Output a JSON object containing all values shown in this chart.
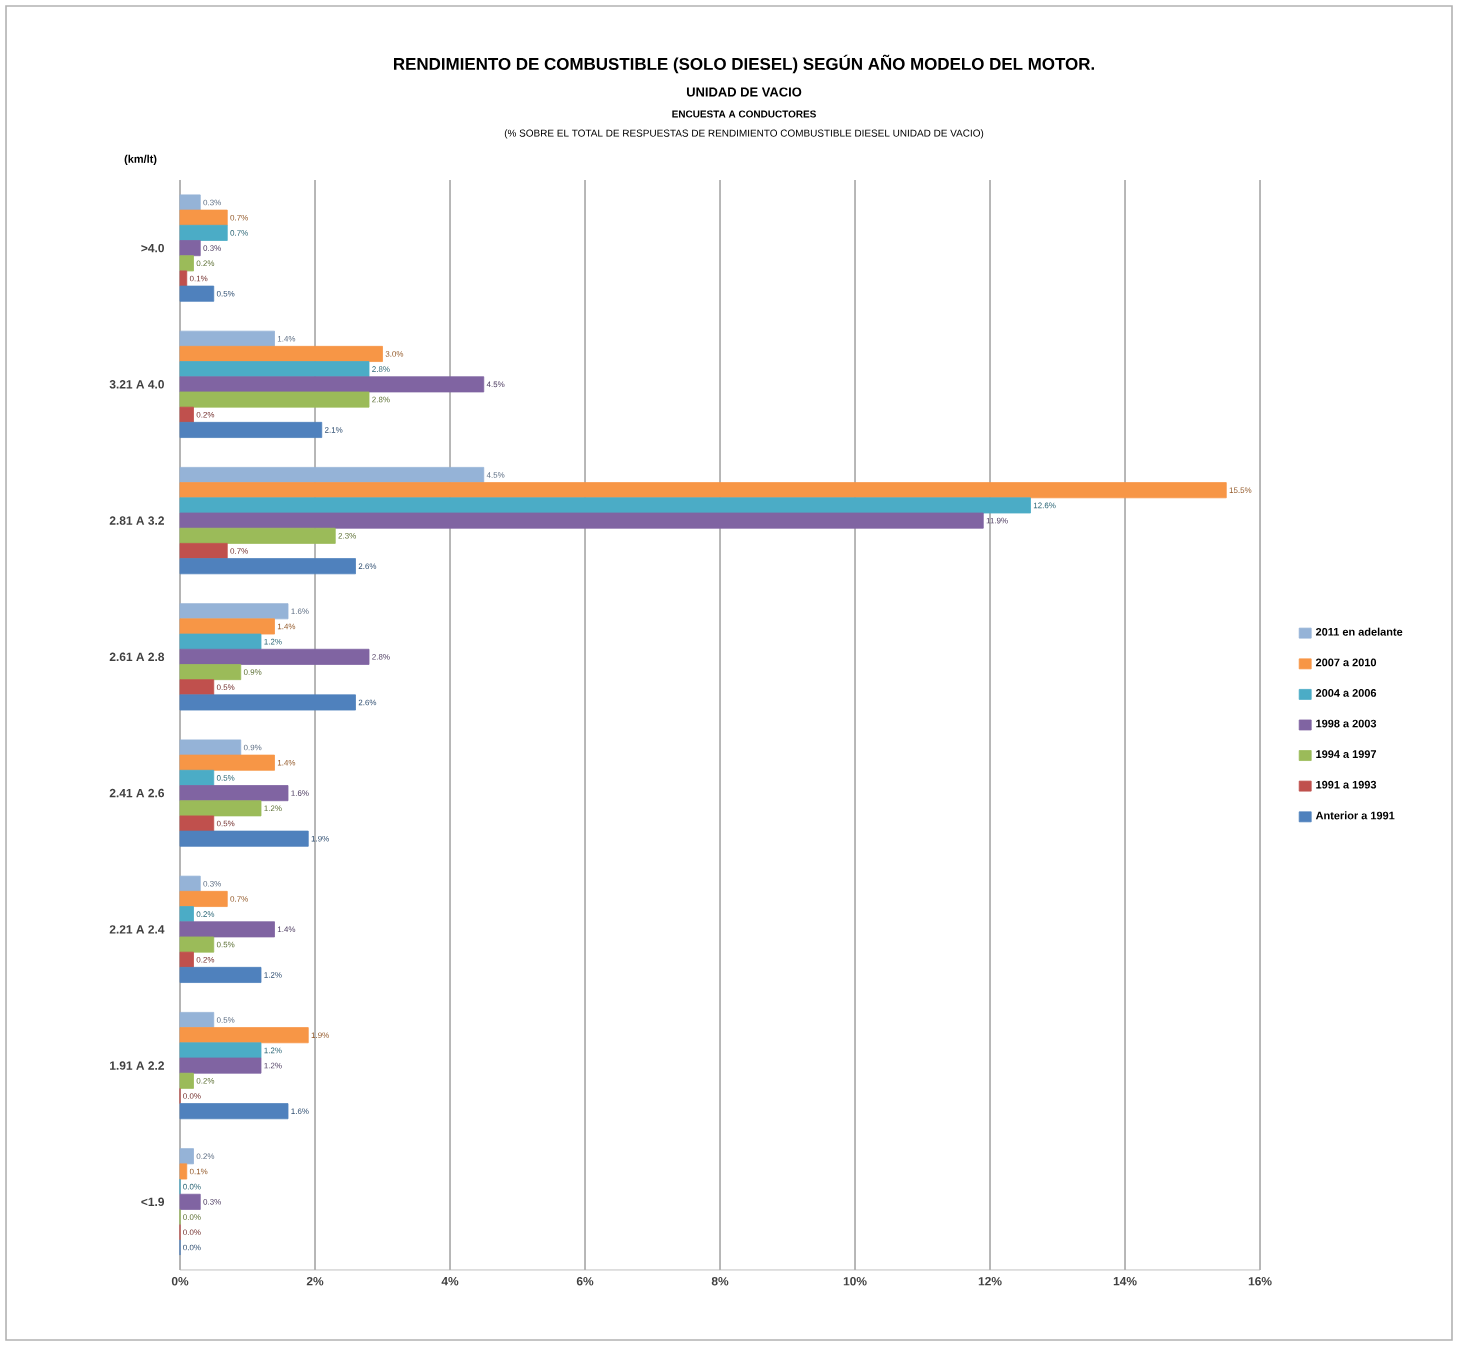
{
  "chart_data": {
    "type": "bar",
    "orientation": "horizontal",
    "title": "RENDIMIENTO DE COMBUSTIBLE (SOLO DIESEL) SEGÚN AÑO MODELO DEL MOTOR.",
    "subtitle": "UNIDAD DE VACIO",
    "annotations": [
      "ENCUESTA A CONDUCTORES",
      "(% SOBRE EL TOTAL DE RESPUESTAS DE RENDIMIENTO COMBUSTIBLE DIESEL UNIDAD DE VACIO)"
    ],
    "ylabel": "(km/lt)",
    "categories": [
      ">4.0",
      "3.21 A 4.0",
      "2.81 A 3.2",
      "2.61 A 2.8",
      "2.41 A 2.6",
      "2.21 A 2.4",
      "1.91 A 2.2",
      "<1.9"
    ],
    "series": [
      {
        "name": "2011 en adelante",
        "color": "#95b3d7",
        "values": [
          0.3,
          1.4,
          4.5,
          1.6,
          0.9,
          0.3,
          0.5,
          0.2
        ],
        "value_labels": [
          "0.3%",
          "1.4%",
          "4.5%",
          "1.6%",
          "0.9%",
          "0.3%",
          "0.5%",
          "0.2%"
        ]
      },
      {
        "name": "2007 a 2010",
        "color": "#f79646",
        "values": [
          0.7,
          3.0,
          15.5,
          1.4,
          1.4,
          0.7,
          1.9,
          0.1
        ],
        "value_labels": [
          "0.7%",
          "3.0%",
          "15.5%",
          "1.4%",
          "1.4%",
          "0.7%",
          "1.9%",
          "0.1%"
        ]
      },
      {
        "name": "2004 a 2006",
        "color": "#4bacc6",
        "values": [
          0.7,
          2.8,
          12.6,
          1.2,
          0.5,
          0.2,
          1.2,
          0.0
        ],
        "value_labels": [
          "0.7%",
          "2.8%",
          "12.6%",
          "1.2%",
          "0.5%",
          "0.2%",
          "1.2%",
          "0.0%"
        ]
      },
      {
        "name": "1998 a 2003",
        "color": "#8064a2",
        "values": [
          0.3,
          4.5,
          11.9,
          2.8,
          1.6,
          1.4,
          1.2,
          0.3
        ],
        "value_labels": [
          "0.3%",
          "4.5%",
          "11.9%",
          "2.8%",
          "1.6%",
          "1.4%",
          "1.2%",
          "0.3%"
        ]
      },
      {
        "name": "1994 a 1997",
        "color": "#9bbb59",
        "values": [
          0.2,
          2.8,
          2.3,
          0.9,
          1.2,
          0.5,
          0.2,
          0.0
        ],
        "value_labels": [
          "0.2%",
          "2.8%",
          "2.3%",
          "0.9%",
          "1.2%",
          "0.5%",
          "0.2%",
          "0.0%"
        ]
      },
      {
        "name": "1991 a 1993",
        "color": "#c0504d",
        "values": [
          0.1,
          0.2,
          0.7,
          0.5,
          0.5,
          0.2,
          0.0,
          0.0
        ],
        "value_labels": [
          "0.1%",
          "0.2%",
          "0.7%",
          "0.5%",
          "0.5%",
          "0.2%",
          "0.0%",
          "0.0%"
        ]
      },
      {
        "name": "Anterior a 1991",
        "color": "#4f81bd",
        "values": [
          0.5,
          2.1,
          2.6,
          2.6,
          1.9,
          1.2,
          1.6,
          0.0
        ],
        "value_labels": [
          "0.5%",
          "2.1%",
          "2.6%",
          "2.6%",
          "1.9%",
          "1.2%",
          "1.6%",
          "0.0%"
        ]
      }
    ],
    "xlim": [
      0,
      16
    ],
    "xticks": [
      {
        "value": 0,
        "label": "0%"
      },
      {
        "value": 2,
        "label": "2%"
      },
      {
        "value": 4,
        "label": "4%"
      },
      {
        "value": 6,
        "label": "6%"
      },
      {
        "value": 8,
        "label": "8%"
      },
      {
        "value": 10,
        "label": "10%"
      },
      {
        "value": 12,
        "label": "12%"
      },
      {
        "value": 14,
        "label": "14%"
      },
      {
        "value": 16,
        "label": "16%"
      }
    ],
    "grid": "x",
    "legend": "right"
  }
}
